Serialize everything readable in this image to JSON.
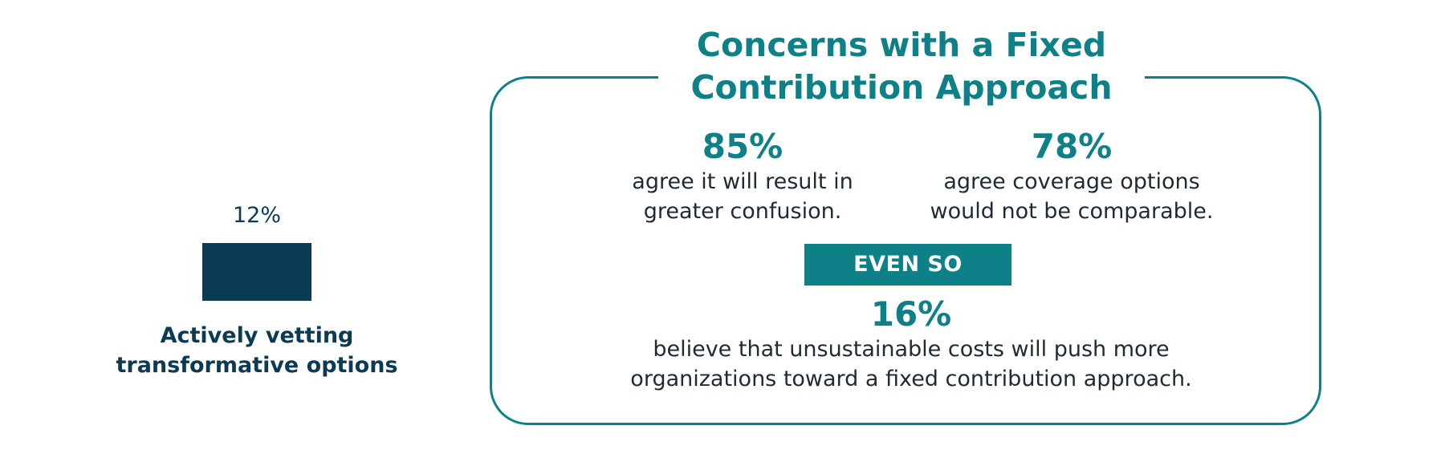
{
  "chart_data": {
    "type": "bar",
    "categories": [
      "Actively vetting transformative options"
    ],
    "category_lines": [
      "Actively vetting",
      "transformative options"
    ],
    "values": [
      12
    ],
    "value_labels": [
      "12%"
    ],
    "ylim": [
      0,
      100
    ],
    "grid": false,
    "bar_color": "#0b3a55"
  },
  "panel": {
    "title_lines": [
      "Concerns with a Fixed",
      "Contribution Approach"
    ],
    "accent_color": "#0e8188",
    "stats": [
      {
        "value": "85%",
        "lines": [
          "agree it will result in",
          "greater confusion."
        ]
      },
      {
        "value": "78%",
        "lines": [
          "agree coverage options",
          "would not be comparable."
        ]
      }
    ],
    "banner": "EVEN SO",
    "highlight": {
      "value": "16%",
      "lines": [
        "believe that unsustainable costs will push more",
        "organizations toward a fixed contribution approach."
      ]
    }
  }
}
